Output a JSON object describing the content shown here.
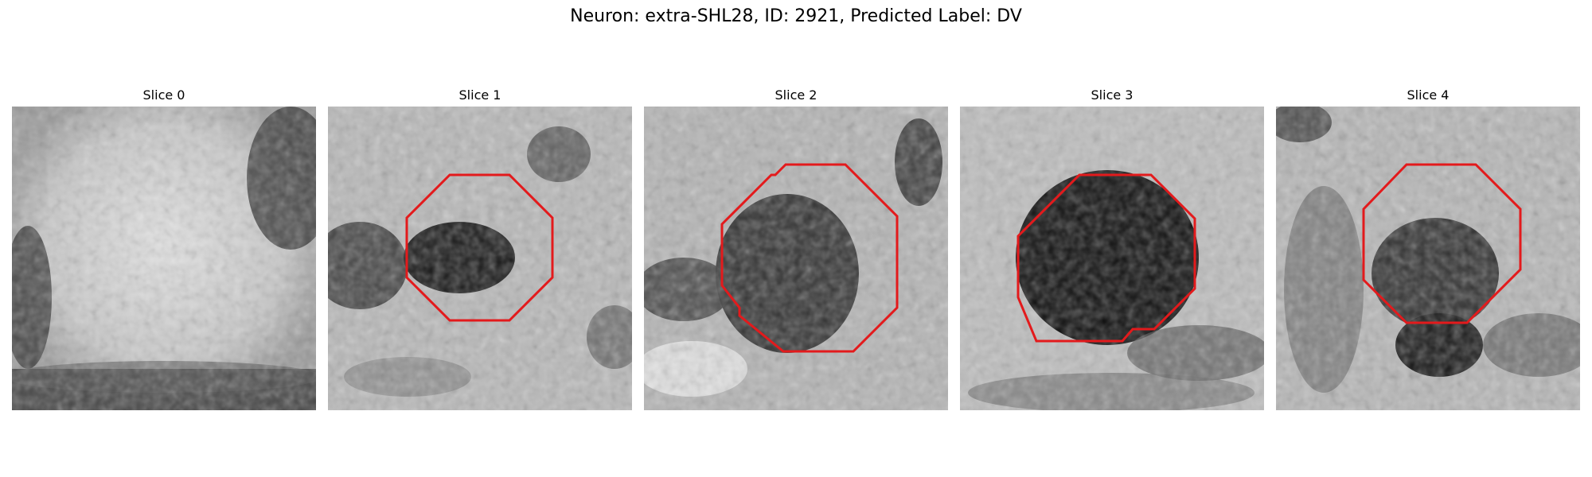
{
  "figure": {
    "title": "Neuron: extra-SHL28, ID: 2921, Predicted Label: DV"
  },
  "slices": [
    {
      "title": "Slice 0",
      "contour": false
    },
    {
      "title": "Slice 1",
      "contour": true
    },
    {
      "title": "Slice 2",
      "contour": true
    },
    {
      "title": "Slice 3",
      "contour": true
    },
    {
      "title": "Slice 4",
      "contour": true
    }
  ],
  "colors": {
    "contour": "#e31a1c",
    "colormap": "grayscale"
  }
}
